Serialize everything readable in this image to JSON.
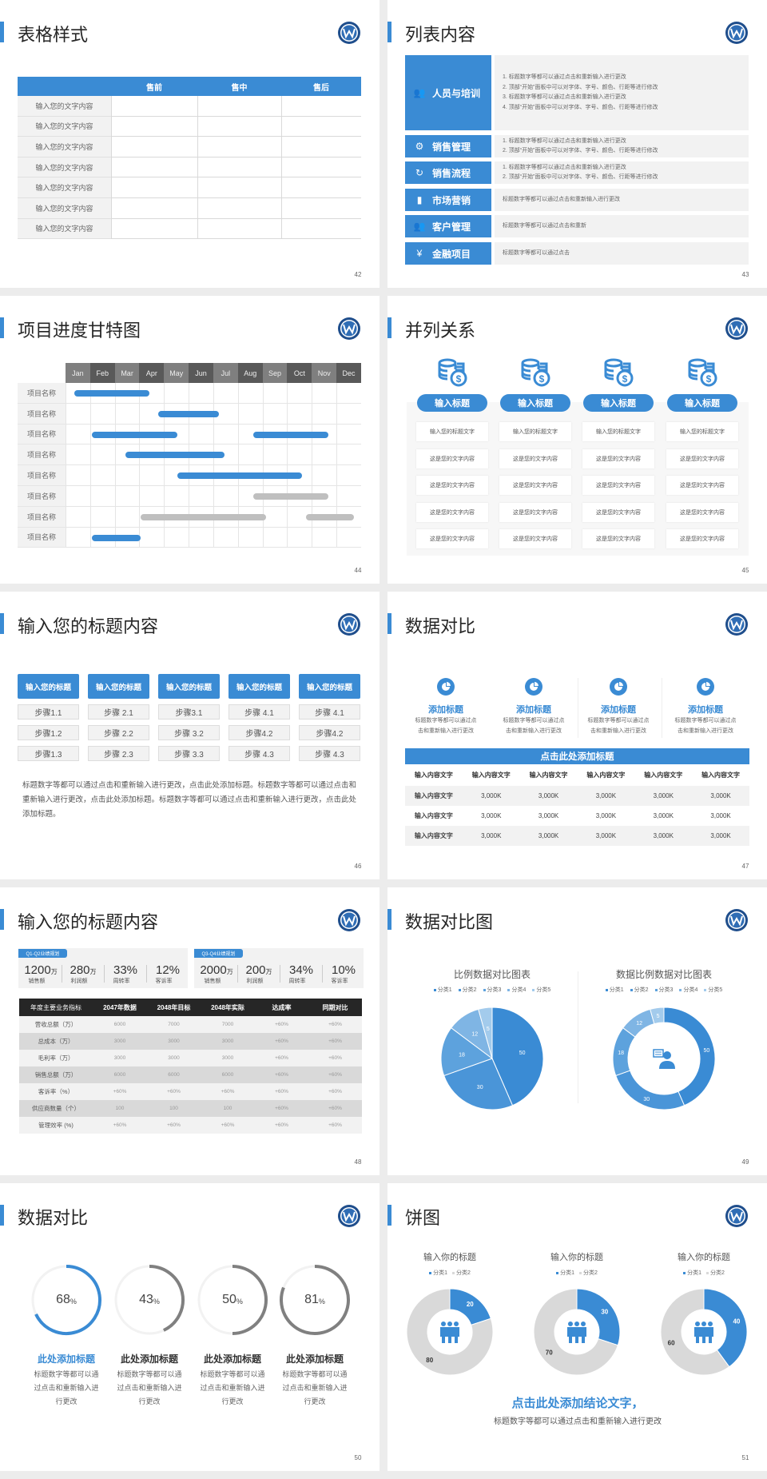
{
  "colors": {
    "accent": "#3a8bd4",
    "dark": "#262626",
    "gray": "#808080",
    "light_gray": "#d9d9d9",
    "pie": [
      "#3a8bd4",
      "#4a95d8",
      "#5da2dd",
      "#7fb5e4",
      "#a3cbec"
    ]
  },
  "s42": {
    "title": "表格样式",
    "page": "42",
    "headers": [
      "",
      "售前",
      "售中",
      "售后"
    ],
    "rows": [
      "输入您的文字内容",
      "输入您的文字内容",
      "输入您的文字内容",
      "输入您的文字内容",
      "输入您的文字内容",
      "输入您的文字内容",
      "输入您的文字内容"
    ]
  },
  "s43": {
    "title": "列表内容",
    "page": "43",
    "items": [
      {
        "label": "人员与培训",
        "icon": "people-training-icon",
        "lines": [
          "1.  标题数字等都可以通过点击和重新输入进行更改",
          "2.  顶部“开始”面板中可以对字体、字号、颜色、行距等进行修改",
          "3.  标题数字等都可以通过点击和重新输入进行更改",
          "4.  顶部“开始”面板中可以对字体、字号、颜色、行距等进行修改"
        ]
      },
      {
        "label": "销售管理",
        "icon": "user-gear-icon",
        "lines": [
          "1.  标题数字等都可以通过点击和重新输入进行更改",
          "2.  顶部“开始”面板中可以对字体、字号、颜色、行距等进行修改"
        ]
      },
      {
        "label": "销售流程",
        "icon": "cycle-icon",
        "lines": [
          "1.  标题数字等都可以通过点击和重新输入进行更改",
          "2.  顶部“开始”面板中可以对字体、字号、颜色、行距等进行修改"
        ]
      },
      {
        "label": "市场营销",
        "icon": "bar-chart-icon",
        "lines": [
          "标题数字等都可以通过点击和重新输入进行更改"
        ]
      },
      {
        "label": "客户管理",
        "icon": "users-icon",
        "lines": [
          "标题数字等都可以通过点击和重新"
        ]
      },
      {
        "label": "金融项目",
        "icon": "yuan-hand-icon",
        "lines": [
          "标题数字等都可以通过点击"
        ]
      }
    ]
  },
  "s44": {
    "title": "项目进度甘特图",
    "page": "44",
    "months": [
      "Jan",
      "Feb",
      "Mar",
      "Apr",
      "May",
      "Jun",
      "Jul",
      "Aug",
      "Sep",
      "Oct",
      "Nov",
      "Dec"
    ],
    "tasks": [
      {
        "name": "项目名称",
        "bars": [
          {
            "start": 0.35,
            "end": 3.4,
            "status": "active"
          }
        ]
      },
      {
        "name": "项目名称",
        "bars": [
          {
            "start": 3.77,
            "end": 6.23,
            "status": "active"
          }
        ]
      },
      {
        "name": "项目名称",
        "bars": [
          {
            "start": 1.07,
            "end": 4.54,
            "status": "active"
          },
          {
            "start": 7.63,
            "end": 10.68,
            "status": "active"
          }
        ]
      },
      {
        "name": "项目名称",
        "bars": [
          {
            "start": 2.43,
            "end": 6.45,
            "status": "active"
          }
        ]
      },
      {
        "name": "项目名称",
        "bars": [
          {
            "start": 4.55,
            "end": 9.6,
            "status": "active"
          }
        ]
      },
      {
        "name": "项目名称",
        "bars": [
          {
            "start": 7.63,
            "end": 10.68,
            "status": "pending"
          }
        ]
      },
      {
        "name": "项目名称",
        "bars": [
          {
            "start": 3.05,
            "end": 8.13,
            "status": "pending"
          },
          {
            "start": 9.75,
            "end": 11.7,
            "status": "pending"
          }
        ]
      },
      {
        "name": "项目名称",
        "bars": [
          {
            "start": 1.07,
            "end": 3.04,
            "status": "active"
          }
        ]
      }
    ]
  },
  "s45": {
    "title": "并列关系",
    "page": "45",
    "columns": [
      {
        "heading": "输入标题",
        "icon": "coins-dollar-icon",
        "cells": [
          "输入您的标题文字",
          "这是您的文字内容",
          "这是您的文字内容",
          "这是您的文字内容",
          "这是您的文字内容"
        ]
      },
      {
        "heading": "输入标题",
        "icon": "coins-dollar-icon",
        "cells": [
          "输入您的标题文字",
          "这是您的文字内容",
          "这是您的文字内容",
          "这是您的文字内容",
          "这是您的文字内容"
        ]
      },
      {
        "heading": "输入标题",
        "icon": "coins-dollar-icon",
        "cells": [
          "输入您的标题文字",
          "这是您的文字内容",
          "这是您的文字内容",
          "这是您的文字内容",
          "这是您的文字内容"
        ]
      },
      {
        "heading": "输入标题",
        "icon": "coins-dollar-icon",
        "cells": [
          "输入您的标题文字",
          "这是您的文字内容",
          "这是您的文字内容",
          "这是您的文字内容",
          "这是您的文字内容"
        ]
      }
    ]
  },
  "s46": {
    "title": "输入您的标题内容",
    "page": "46",
    "columns": [
      {
        "heading": "输入您的标题",
        "steps": [
          "步骤1.1",
          "步骤1.2",
          "步骤1.3"
        ]
      },
      {
        "heading": "输入您的标题",
        "steps": [
          "步骤 2.1",
          "步骤 2.2",
          "步骤 2.3"
        ]
      },
      {
        "heading": "输入您的标题",
        "steps": [
          "步骤3.1",
          "步骤 3.2",
          "步骤 3.3"
        ]
      },
      {
        "heading": "输入您的标题",
        "steps": [
          "步骤 4.1",
          "步骤4.2",
          "步骤 4.3"
        ]
      },
      {
        "heading": "输入您的标题",
        "steps": [
          "步骤 4.1",
          "步骤4.2",
          "步骤 4.3"
        ]
      }
    ],
    "paragraph": "标题数字等都可以通过点击和重新输入进行更改，点击此处添加标题。标题数字等都可以通过点击和重新输入进行更改，点击此处添加标题。标题数字等都可以通过点击和重新输入进行更改，点击此处添加标题。"
  },
  "s47": {
    "title": "数据对比",
    "page": "47",
    "cards": [
      {
        "title": "添加标题",
        "desc": "标题数字等都可以通过点击和重新输入进行更改",
        "icon": "pie-chart-icon"
      },
      {
        "title": "添加标题",
        "desc": "标题数字等都可以通过点击和重新输入进行更改",
        "icon": "pie-chart-icon"
      },
      {
        "title": "添加标题",
        "desc": "标题数字等都可以通过点击和重新输入进行更改",
        "icon": "pie-chart-icon"
      },
      {
        "title": "添加标题",
        "desc": "标题数字等都可以通过点击和重新输入进行更改",
        "icon": "pie-chart-icon"
      }
    ],
    "table_title": "点击此处添加标题",
    "headers": [
      "输入内容文字",
      "输入内容文字",
      "输入内容文字",
      "输入内容文字",
      "输入内容文字",
      "输入内容文字"
    ],
    "rows": [
      [
        "输入内容文字",
        "3,000K",
        "3,000K",
        "3,000K",
        "3,000K",
        "3,000K"
      ],
      [
        "输入内容文字",
        "3,000K",
        "3,000K",
        "3,000K",
        "3,000K",
        "3,000K"
      ],
      [
        "输入内容文字",
        "3,000K",
        "3,000K",
        "3,000K",
        "3,000K",
        "3,000K"
      ]
    ]
  },
  "s48": {
    "title": "输入您的标题内容",
    "page": "48",
    "groups": [
      {
        "tag": "Q1-Q2业绩规划",
        "kpis": [
          {
            "value": "1200",
            "unit": "万",
            "label": "销售额"
          },
          {
            "value": "280",
            "unit": "万",
            "label": "利润额"
          },
          {
            "value": "33%",
            "unit": "",
            "label": "周转率"
          },
          {
            "value": "12%",
            "unit": "",
            "label": "客诉率"
          }
        ]
      },
      {
        "tag": "Q3-Q4业绩规划",
        "kpis": [
          {
            "value": "2000",
            "unit": "万",
            "label": "销售额"
          },
          {
            "value": "200",
            "unit": "万",
            "label": "利润额"
          },
          {
            "value": "34%",
            "unit": "",
            "label": "周转率"
          },
          {
            "value": "10%",
            "unit": "",
            "label": "客诉率"
          }
        ]
      }
    ],
    "headers": [
      "年度主要业务指标",
      "2047年数据",
      "2048年目标",
      "2048年实际",
      "达成率",
      "同期对比"
    ],
    "rows": [
      [
        "营收总额（万）",
        "6000",
        "7000",
        "7000",
        "+60%",
        "+60%"
      ],
      [
        "总成本（万）",
        "3000",
        "3000",
        "3000",
        "+60%",
        "+60%"
      ],
      [
        "毛利率（万）",
        "3000",
        "3000",
        "3000",
        "+60%",
        "+60%"
      ],
      [
        "销售总额（万）",
        "6000",
        "6000",
        "6000",
        "+60%",
        "+60%"
      ],
      [
        "客诉率（%）",
        "+60%",
        "+60%",
        "+60%",
        "+60%",
        "+60%"
      ],
      [
        "供应商数量（个）",
        "100",
        "100",
        "100",
        "+60%",
        "+60%"
      ],
      [
        "管理效率 (%)",
        "+60%",
        "+60%",
        "+60%",
        "+60%",
        "+60%"
      ]
    ]
  },
  "s49": {
    "title": "数据对比图",
    "page": "49",
    "chart_data": [
      {
        "type": "pie",
        "title": "比例数据对比图表",
        "legend": [
          "分类1",
          "分类2",
          "分类3",
          "分类4",
          "分类5"
        ],
        "legend_position": "top",
        "values": [
          50,
          30,
          18,
          12,
          5
        ]
      },
      {
        "type": "donut",
        "title": "数据比例数据对比图表",
        "legend": [
          "分类1",
          "分类2",
          "分类3",
          "分类4",
          "分类5"
        ],
        "legend_position": "top",
        "values": [
          50,
          30,
          18,
          12,
          5
        ],
        "center_icon": "customer-service-icon"
      }
    ]
  },
  "s50": {
    "title": "数据对比",
    "page": "50",
    "items": [
      {
        "value": "68",
        "unit": "%",
        "percent": 68,
        "title": "此处添加标题",
        "desc": "标题数字等都可以通过点击和重新输入进行更改",
        "highlight": true
      },
      {
        "value": "43",
        "unit": "%",
        "percent": 43,
        "title": "此处添加标题",
        "desc": "标题数字等都可以通过点击和重新输入进行更改",
        "highlight": false
      },
      {
        "value": "50",
        "unit": "%",
        "percent": 50,
        "title": "此处添加标题",
        "desc": "标题数字等都可以通过点击和重新输入进行更改",
        "highlight": false
      },
      {
        "value": "81",
        "unit": "%",
        "percent": 81,
        "title": "此处添加标题",
        "desc": "标题数字等都可以通过点击和重新输入进行更改",
        "highlight": false
      }
    ]
  },
  "s51": {
    "title": "饼图",
    "page": "51",
    "chart_data": [
      {
        "type": "donut",
        "title": "输入你的标题",
        "legend": [
          "分类1",
          "分类2"
        ],
        "legend_position": "top",
        "values": [
          20,
          80
        ],
        "center_icon": "team-icon"
      },
      {
        "type": "donut",
        "title": "输入你的标题",
        "legend": [
          "分类1",
          "分类2"
        ],
        "legend_position": "top",
        "values": [
          30,
          70
        ],
        "center_icon": "team-icon"
      },
      {
        "type": "donut",
        "title": "输入你的标题",
        "legend": [
          "分类1",
          "分类2"
        ],
        "legend_position": "top",
        "values": [
          40,
          60
        ],
        "center_icon": "team-icon"
      }
    ],
    "conclusion": "点击此处添加结论文字，",
    "subtext": "标题数字等都可以通过点击和重新输入进行更改"
  }
}
